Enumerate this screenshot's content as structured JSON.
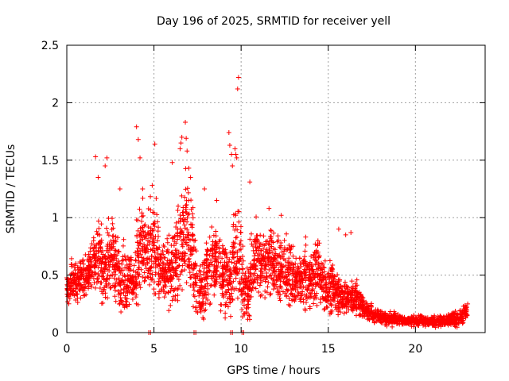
{
  "chart_data": {
    "type": "scatter",
    "title": "Day 196 of 2025, SRMTID for receiver yell",
    "xlabel": "GPS time / hours",
    "ylabel": "SRMTID / TECUs",
    "xlim": [
      0,
      24
    ],
    "ylim": [
      0,
      2.5
    ],
    "xticks": [
      0,
      5,
      10,
      15,
      20
    ],
    "yticks": [
      0,
      0.5,
      1,
      1.5,
      2,
      2.5
    ],
    "xtick_labels": [
      "0",
      "5",
      "10",
      "15",
      "20"
    ],
    "ytick_labels": [
      "0",
      "0.5",
      "1",
      "1.5",
      "2",
      "2.5"
    ],
    "grid": true,
    "marker": "+",
    "color": "#ff0000",
    "series": [
      {
        "name": "SRMTID",
        "profile_note": "approximate envelope of the dense scatter, sampled every 0.25 h: [hour, typical value, spread]",
        "profile": [
          [
            0.0,
            0.38,
            0.12
          ],
          [
            0.25,
            0.45,
            0.15
          ],
          [
            0.5,
            0.45,
            0.15
          ],
          [
            0.75,
            0.48,
            0.15
          ],
          [
            1.0,
            0.5,
            0.15
          ],
          [
            1.25,
            0.58,
            0.18
          ],
          [
            1.5,
            0.62,
            0.2
          ],
          [
            1.75,
            0.65,
            0.25
          ],
          [
            2.0,
            0.55,
            0.25
          ],
          [
            2.25,
            0.6,
            0.3
          ],
          [
            2.5,
            0.7,
            0.3
          ],
          [
            2.75,
            0.55,
            0.25
          ],
          [
            3.0,
            0.5,
            0.25
          ],
          [
            3.25,
            0.45,
            0.25
          ],
          [
            3.5,
            0.5,
            0.2
          ],
          [
            3.75,
            0.45,
            0.2
          ],
          [
            4.0,
            0.7,
            0.35
          ],
          [
            4.25,
            0.75,
            0.4
          ],
          [
            4.5,
            0.65,
            0.3
          ],
          [
            4.75,
            0.7,
            0.35
          ],
          [
            5.0,
            0.75,
            0.35
          ],
          [
            5.25,
            0.5,
            0.2
          ],
          [
            5.5,
            0.5,
            0.2
          ],
          [
            5.75,
            0.55,
            0.25
          ],
          [
            6.0,
            0.6,
            0.3
          ],
          [
            6.25,
            0.7,
            0.35
          ],
          [
            6.5,
            0.8,
            0.4
          ],
          [
            6.75,
            0.85,
            0.45
          ],
          [
            7.0,
            0.75,
            0.4
          ],
          [
            7.25,
            0.5,
            0.25
          ],
          [
            7.5,
            0.35,
            0.2
          ],
          [
            7.75,
            0.4,
            0.25
          ],
          [
            8.0,
            0.55,
            0.3
          ],
          [
            8.25,
            0.6,
            0.3
          ],
          [
            8.5,
            0.65,
            0.3
          ],
          [
            8.75,
            0.55,
            0.3
          ],
          [
            9.0,
            0.5,
            0.25
          ],
          [
            9.25,
            0.45,
            0.25
          ],
          [
            9.5,
            0.65,
            0.3
          ],
          [
            9.75,
            0.7,
            0.35
          ],
          [
            10.0,
            0.4,
            0.25
          ],
          [
            10.25,
            0.35,
            0.25
          ],
          [
            10.5,
            0.55,
            0.3
          ],
          [
            10.75,
            0.65,
            0.3
          ],
          [
            11.0,
            0.6,
            0.25
          ],
          [
            11.25,
            0.6,
            0.25
          ],
          [
            11.5,
            0.65,
            0.25
          ],
          [
            11.75,
            0.6,
            0.25
          ],
          [
            12.0,
            0.55,
            0.25
          ],
          [
            12.25,
            0.55,
            0.25
          ],
          [
            12.5,
            0.5,
            0.25
          ],
          [
            12.75,
            0.5,
            0.25
          ],
          [
            13.0,
            0.45,
            0.2
          ],
          [
            13.25,
            0.45,
            0.2
          ],
          [
            13.5,
            0.5,
            0.25
          ],
          [
            13.75,
            0.45,
            0.2
          ],
          [
            14.0,
            0.5,
            0.2
          ],
          [
            14.25,
            0.55,
            0.25
          ],
          [
            14.5,
            0.45,
            0.2
          ],
          [
            14.75,
            0.4,
            0.2
          ],
          [
            15.0,
            0.4,
            0.2
          ],
          [
            15.25,
            0.35,
            0.15
          ],
          [
            15.5,
            0.35,
            0.15
          ],
          [
            15.75,
            0.3,
            0.12
          ],
          [
            16.0,
            0.3,
            0.12
          ],
          [
            16.25,
            0.3,
            0.12
          ],
          [
            16.5,
            0.3,
            0.12
          ],
          [
            16.75,
            0.25,
            0.1
          ],
          [
            17.0,
            0.2,
            0.08
          ],
          [
            17.25,
            0.18,
            0.07
          ],
          [
            17.5,
            0.15,
            0.06
          ],
          [
            17.75,
            0.14,
            0.05
          ],
          [
            18.0,
            0.13,
            0.05
          ],
          [
            18.25,
            0.12,
            0.05
          ],
          [
            18.5,
            0.12,
            0.05
          ],
          [
            18.75,
            0.12,
            0.05
          ],
          [
            19.0,
            0.12,
            0.04
          ],
          [
            19.25,
            0.1,
            0.04
          ],
          [
            19.5,
            0.1,
            0.04
          ],
          [
            19.75,
            0.1,
            0.04
          ],
          [
            20.0,
            0.1,
            0.04
          ],
          [
            20.25,
            0.1,
            0.04
          ],
          [
            20.5,
            0.1,
            0.04
          ],
          [
            20.75,
            0.1,
            0.04
          ],
          [
            21.0,
            0.1,
            0.04
          ],
          [
            21.25,
            0.1,
            0.04
          ],
          [
            21.5,
            0.1,
            0.04
          ],
          [
            21.75,
            0.12,
            0.05
          ],
          [
            22.0,
            0.12,
            0.06
          ],
          [
            22.25,
            0.12,
            0.06
          ],
          [
            22.5,
            0.13,
            0.06
          ],
          [
            22.75,
            0.18,
            0.07
          ]
        ],
        "notable_points": [
          [
            4.0,
            1.79
          ],
          [
            4.1,
            1.68
          ],
          [
            4.2,
            1.52
          ],
          [
            4.35,
            1.25
          ],
          [
            4.9,
            1.28
          ],
          [
            5.05,
            1.64
          ],
          [
            6.05,
            1.48
          ],
          [
            6.5,
            1.6
          ],
          [
            6.55,
            1.65
          ],
          [
            6.6,
            1.7
          ],
          [
            6.8,
            1.83
          ],
          [
            6.85,
            1.69
          ],
          [
            6.9,
            1.58
          ],
          [
            7.0,
            1.43
          ],
          [
            7.1,
            1.35
          ],
          [
            7.9,
            1.25
          ],
          [
            8.6,
            1.15
          ],
          [
            9.3,
            1.74
          ],
          [
            9.35,
            1.63
          ],
          [
            9.45,
            1.55
          ],
          [
            9.5,
            1.45
          ],
          [
            9.65,
            1.6
          ],
          [
            9.7,
            1.55
          ],
          [
            9.75,
            1.52
          ],
          [
            9.8,
            2.12
          ],
          [
            9.85,
            2.22
          ],
          [
            10.5,
            1.31
          ],
          [
            11.6,
            1.08
          ],
          [
            12.3,
            1.02
          ],
          [
            1.65,
            1.53
          ],
          [
            1.8,
            1.35
          ],
          [
            2.2,
            1.45
          ],
          [
            2.3,
            1.52
          ],
          [
            3.05,
            1.25
          ],
          [
            15.6,
            0.9
          ],
          [
            16.0,
            0.85
          ],
          [
            16.3,
            0.87
          ],
          [
            4.7,
            0.0
          ],
          [
            4.8,
            0.0
          ],
          [
            7.3,
            0.0
          ],
          [
            7.4,
            0.0
          ],
          [
            9.4,
            0.0
          ],
          [
            9.5,
            0.0
          ],
          [
            10.05,
            0.0
          ],
          [
            10.15,
            0.0
          ]
        ]
      }
    ]
  }
}
